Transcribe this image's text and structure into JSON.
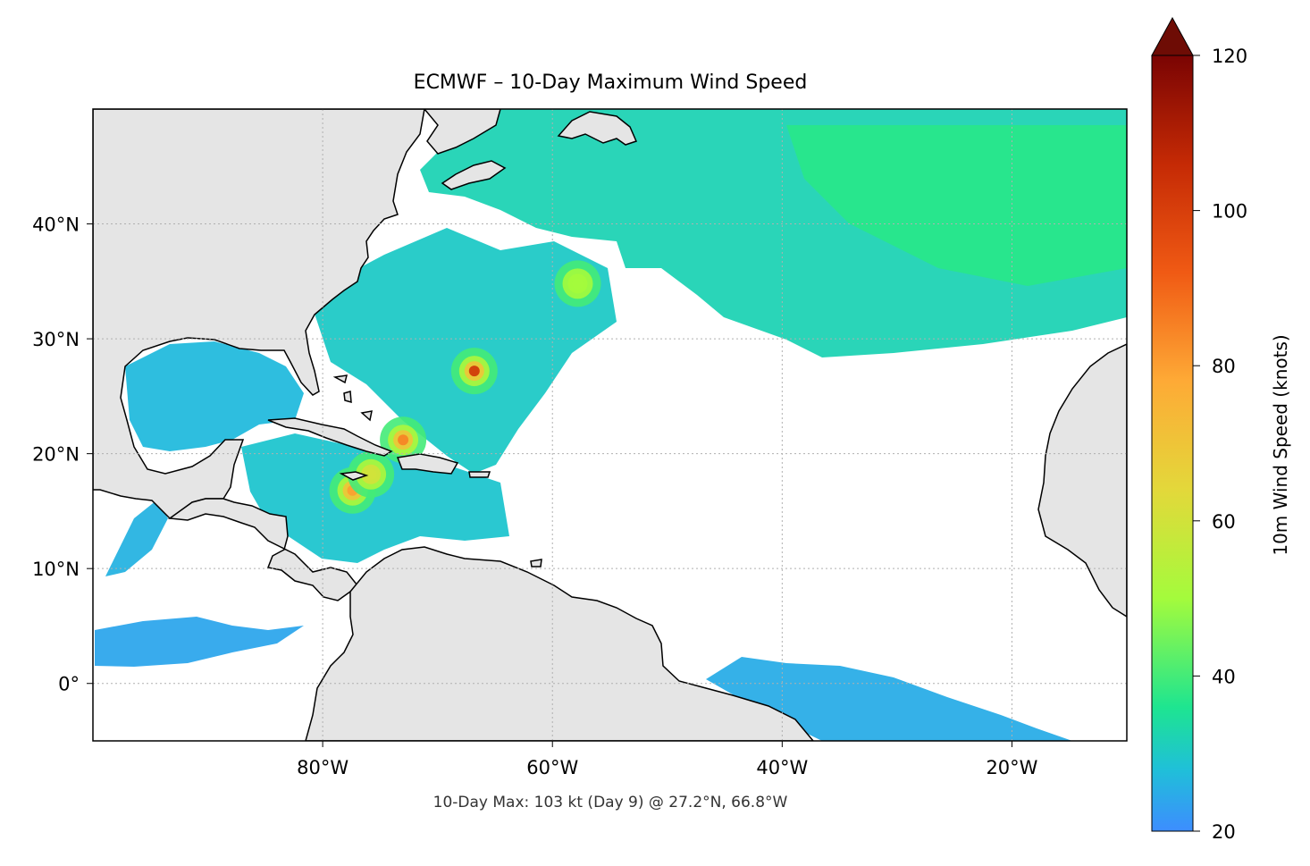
{
  "title": "ECMWF – 10-Day Maximum Wind Speed",
  "footer": "10-Day Max: 103 kt (Day 9) @ 27.2°N, 66.8°W",
  "map": {
    "lon_range": [
      -100,
      -10
    ],
    "lat_range": [
      -5,
      50
    ],
    "lon_ticks": [
      {
        "value": -80,
        "label": "80°W"
      },
      {
        "value": -60,
        "label": "60°W"
      },
      {
        "value": -40,
        "label": "40°W"
      },
      {
        "value": -20,
        "label": "20°W"
      }
    ],
    "lat_ticks": [
      {
        "value": 40,
        "label": "40°N"
      },
      {
        "value": 30,
        "label": "30°N"
      },
      {
        "value": 20,
        "label": "20°N"
      },
      {
        "value": 10,
        "label": "10°N"
      },
      {
        "value": 0,
        "label": "0°"
      }
    ],
    "land_color": "#e5e5e5",
    "ocean_color": "#ffffff",
    "storm_centers": [
      {
        "lat": 27.2,
        "lon": -66.8,
        "peak_kt": 103
      },
      {
        "lat": 21.2,
        "lon": -73.0,
        "peak_kt": 85
      },
      {
        "lat": 16.8,
        "lon": -77.4,
        "peak_kt": 80
      },
      {
        "lat": 18.2,
        "lon": -75.8,
        "peak_kt": 60
      },
      {
        "lat": 34.8,
        "lon": -57.8,
        "peak_kt": 50
      }
    ]
  },
  "colorbar": {
    "label": "10m Wind Speed (knots)",
    "min": 20,
    "max": 120,
    "extend": "max",
    "ticks": [
      {
        "value": 20,
        "label": "20"
      },
      {
        "value": 40,
        "label": "40"
      },
      {
        "value": 60,
        "label": "60"
      },
      {
        "value": 80,
        "label": "80"
      },
      {
        "value": 100,
        "label": "100"
      },
      {
        "value": 120,
        "label": "120"
      }
    ],
    "colors": [
      {
        "value": 20,
        "color": "#3d8dff"
      },
      {
        "value": 28,
        "color": "#1fc0d8"
      },
      {
        "value": 36,
        "color": "#1ee590"
      },
      {
        "value": 50,
        "color": "#a4fb3c"
      },
      {
        "value": 64,
        "color": "#e3d83a"
      },
      {
        "value": 78,
        "color": "#feaa36"
      },
      {
        "value": 92,
        "color": "#f05a14"
      },
      {
        "value": 106,
        "color": "#c52a05"
      },
      {
        "value": 120,
        "color": "#7a0403"
      }
    ],
    "over_color": "#6e0c05"
  }
}
